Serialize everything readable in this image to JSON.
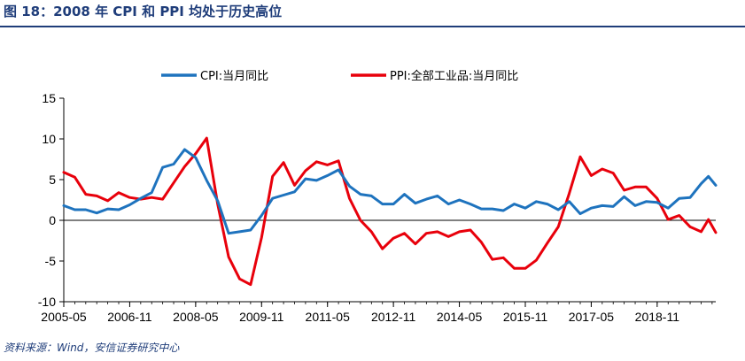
{
  "figure": {
    "title": "图 18：2008 年 CPI 和 PPI 均处于历史高位",
    "source": "资料来源：Wind，安信证券研究中心"
  },
  "colors": {
    "cpi": "#1e73be",
    "ppi": "#e8000b",
    "title": "#1f3d7a"
  },
  "chart_data": {
    "type": "line",
    "x_start": "2005-05",
    "x_end": "2020-03",
    "x_ticks": [
      "2005-05",
      "2006-11",
      "2008-05",
      "2009-11",
      "2011-05",
      "2012-11",
      "2014-05",
      "2015-11",
      "2017-05",
      "2018-11"
    ],
    "y_ticks": [
      15,
      10,
      5,
      0,
      -5,
      -10
    ],
    "ylim": [
      -10,
      15
    ],
    "legend_position": "top",
    "grid": false,
    "series": [
      {
        "name": "CPI:当月同比",
        "points": [
          [
            "2005-05",
            1.8
          ],
          [
            "2005-08",
            1.3
          ],
          [
            "2005-11",
            1.3
          ],
          [
            "2006-02",
            0.9
          ],
          [
            "2006-05",
            1.4
          ],
          [
            "2006-08",
            1.3
          ],
          [
            "2006-11",
            1.9
          ],
          [
            "2007-02",
            2.7
          ],
          [
            "2007-05",
            3.4
          ],
          [
            "2007-08",
            6.5
          ],
          [
            "2007-11",
            6.9
          ],
          [
            "2008-02",
            8.7
          ],
          [
            "2008-05",
            7.7
          ],
          [
            "2008-08",
            4.9
          ],
          [
            "2008-11",
            2.4
          ],
          [
            "2009-02",
            -1.6
          ],
          [
            "2009-05",
            -1.4
          ],
          [
            "2009-08",
            -1.2
          ],
          [
            "2009-11",
            0.6
          ],
          [
            "2010-02",
            2.7
          ],
          [
            "2010-05",
            3.1
          ],
          [
            "2010-08",
            3.5
          ],
          [
            "2010-11",
            5.1
          ],
          [
            "2011-02",
            4.9
          ],
          [
            "2011-05",
            5.5
          ],
          [
            "2011-08",
            6.2
          ],
          [
            "2011-11",
            4.2
          ],
          [
            "2012-02",
            3.2
          ],
          [
            "2012-05",
            3.0
          ],
          [
            "2012-08",
            2.0
          ],
          [
            "2012-11",
            2.0
          ],
          [
            "2013-02",
            3.2
          ],
          [
            "2013-05",
            2.1
          ],
          [
            "2013-08",
            2.6
          ],
          [
            "2013-11",
            3.0
          ],
          [
            "2014-02",
            2.0
          ],
          [
            "2014-05",
            2.5
          ],
          [
            "2014-08",
            2.0
          ],
          [
            "2014-11",
            1.4
          ],
          [
            "2015-02",
            1.4
          ],
          [
            "2015-05",
            1.2
          ],
          [
            "2015-08",
            2.0
          ],
          [
            "2015-11",
            1.5
          ],
          [
            "2016-02",
            2.3
          ],
          [
            "2016-05",
            2.0
          ],
          [
            "2016-08",
            1.3
          ],
          [
            "2016-11",
            2.3
          ],
          [
            "2017-02",
            0.8
          ],
          [
            "2017-05",
            1.5
          ],
          [
            "2017-08",
            1.8
          ],
          [
            "2017-11",
            1.7
          ],
          [
            "2018-02",
            2.9
          ],
          [
            "2018-05",
            1.8
          ],
          [
            "2018-08",
            2.3
          ],
          [
            "2018-11",
            2.2
          ],
          [
            "2019-02",
            1.5
          ],
          [
            "2019-05",
            2.7
          ],
          [
            "2019-08",
            2.8
          ],
          [
            "2019-11",
            4.5
          ],
          [
            "2020-01",
            5.4
          ],
          [
            "2020-03",
            4.3
          ]
        ]
      },
      {
        "name": "PPI:全部工业品:当月同比",
        "points": [
          [
            "2005-05",
            5.9
          ],
          [
            "2005-08",
            5.3
          ],
          [
            "2005-11",
            3.2
          ],
          [
            "2006-02",
            3.0
          ],
          [
            "2006-05",
            2.4
          ],
          [
            "2006-08",
            3.4
          ],
          [
            "2006-11",
            2.8
          ],
          [
            "2007-02",
            2.6
          ],
          [
            "2007-05",
            2.8
          ],
          [
            "2007-08",
            2.6
          ],
          [
            "2007-11",
            4.6
          ],
          [
            "2008-02",
            6.6
          ],
          [
            "2008-05",
            8.2
          ],
          [
            "2008-08",
            10.1
          ],
          [
            "2008-11",
            2.0
          ],
          [
            "2009-02",
            -4.5
          ],
          [
            "2009-05",
            -7.2
          ],
          [
            "2009-08",
            -7.9
          ],
          [
            "2009-11",
            -2.1
          ],
          [
            "2010-02",
            5.4
          ],
          [
            "2010-05",
            7.1
          ],
          [
            "2010-08",
            4.3
          ],
          [
            "2010-11",
            6.1
          ],
          [
            "2011-02",
            7.2
          ],
          [
            "2011-05",
            6.8
          ],
          [
            "2011-08",
            7.3
          ],
          [
            "2011-11",
            2.7
          ],
          [
            "2012-02",
            0.0
          ],
          [
            "2012-05",
            -1.4
          ],
          [
            "2012-08",
            -3.5
          ],
          [
            "2012-11",
            -2.2
          ],
          [
            "2013-02",
            -1.6
          ],
          [
            "2013-05",
            -2.9
          ],
          [
            "2013-08",
            -1.6
          ],
          [
            "2013-11",
            -1.4
          ],
          [
            "2014-02",
            -2.0
          ],
          [
            "2014-05",
            -1.4
          ],
          [
            "2014-08",
            -1.2
          ],
          [
            "2014-11",
            -2.7
          ],
          [
            "2015-02",
            -4.8
          ],
          [
            "2015-05",
            -4.6
          ],
          [
            "2015-08",
            -5.9
          ],
          [
            "2015-11",
            -5.9
          ],
          [
            "2016-02",
            -4.9
          ],
          [
            "2016-05",
            -2.8
          ],
          [
            "2016-08",
            -0.8
          ],
          [
            "2016-11",
            3.3
          ],
          [
            "2017-02",
            7.8
          ],
          [
            "2017-05",
            5.5
          ],
          [
            "2017-08",
            6.3
          ],
          [
            "2017-11",
            5.8
          ],
          [
            "2018-02",
            3.7
          ],
          [
            "2018-05",
            4.1
          ],
          [
            "2018-08",
            4.1
          ],
          [
            "2018-11",
            2.7
          ],
          [
            "2019-02",
            0.1
          ],
          [
            "2019-05",
            0.6
          ],
          [
            "2019-08",
            -0.8
          ],
          [
            "2019-11",
            -1.4
          ],
          [
            "2020-01",
            0.1
          ],
          [
            "2020-03",
            -1.5
          ]
        ]
      }
    ]
  }
}
